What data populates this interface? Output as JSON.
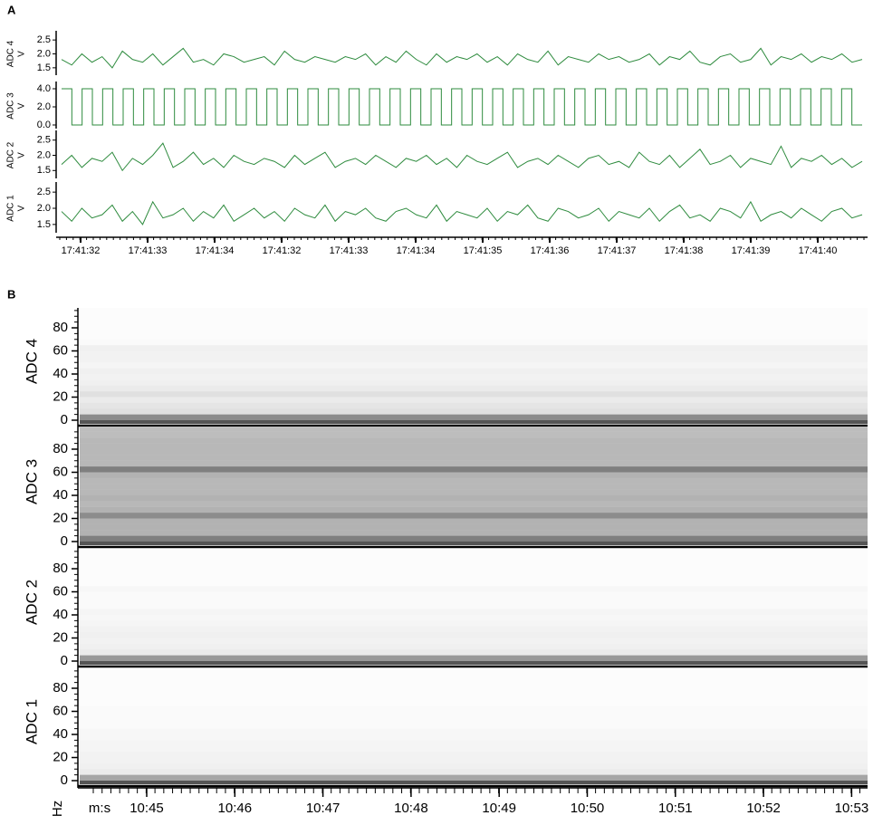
{
  "chart_data": [
    {
      "type": "line",
      "panel_label": "A",
      "unit": "V",
      "color": "#2e8b3e",
      "categories": [
        "17:41:32",
        "17:41:33",
        "17:41:34",
        "17:41:32",
        "17:41:33",
        "17:41:34",
        "17:41:35",
        "17:41:36",
        "17:41:37",
        "17:41:38",
        "17:41:39",
        "17:41:40"
      ],
      "panels": [
        {
          "name": "ADC 4",
          "ylim": [
            1.3,
            2.7
          ],
          "yticks": [
            {
              "value": 1.5,
              "label": "1.5"
            },
            {
              "value": 2,
              "label": "2.0"
            },
            {
              "value": 2.5,
              "label": "2.5"
            }
          ],
          "values": [
            1.8,
            1.6,
            2.0,
            1.7,
            1.9,
            1.5,
            2.1,
            1.8,
            1.7,
            2.0,
            1.6,
            1.9,
            2.2,
            1.7,
            1.8,
            1.6,
            2.0,
            1.9,
            1.7,
            1.8,
            1.9,
            1.6,
            2.1,
            1.8,
            1.7,
            1.9,
            1.8,
            1.7,
            1.9,
            1.8,
            2.0,
            1.6,
            1.9,
            1.7,
            2.1,
            1.8,
            1.6,
            2.0,
            1.7,
            1.9,
            1.8,
            2.0,
            1.7,
            1.9,
            1.6,
            2.0,
            1.8,
            1.7,
            2.1,
            1.6,
            1.9,
            1.8,
            1.7,
            2.0,
            1.8,
            1.9,
            1.7,
            1.8,
            2.0,
            1.6,
            1.9,
            1.8,
            2.1,
            1.7,
            1.6,
            1.9,
            2.0,
            1.7,
            1.8,
            2.2,
            1.6,
            1.9,
            1.8,
            2.0,
            1.7,
            1.9,
            1.8,
            2.0,
            1.7,
            1.8
          ]
        },
        {
          "name": "ADC 3",
          "step": true,
          "ylim": [
            -0.2,
            4.4
          ],
          "yticks": [
            {
              "value": 0,
              "label": "0.0"
            },
            {
              "value": 2,
              "label": "2.0"
            },
            {
              "value": 4,
              "label": "4.0"
            }
          ],
          "values": [
            4,
            0,
            4,
            0,
            4,
            0,
            4,
            0,
            4,
            0,
            4,
            0,
            4,
            0,
            4,
            0,
            4,
            0,
            4,
            0,
            4,
            0,
            4,
            0,
            4,
            0,
            4,
            0,
            4,
            0,
            4,
            0,
            4,
            0,
            4,
            0,
            4,
            0,
            4,
            0,
            4,
            0,
            4,
            0,
            4,
            0,
            4,
            0,
            4,
            0,
            4,
            0,
            4,
            0,
            4,
            0,
            4,
            0,
            4,
            0,
            4,
            0,
            4,
            0,
            4,
            0,
            4,
            0,
            4,
            0,
            4,
            0,
            4,
            0,
            4,
            0,
            4,
            0
          ]
        },
        {
          "name": "ADC 2",
          "ylim": [
            1.3,
            2.7
          ],
          "yticks": [
            {
              "value": 1.5,
              "label": "1.5"
            },
            {
              "value": 2,
              "label": "2.0"
            },
            {
              "value": 2.5,
              "label": "2.5"
            }
          ],
          "values": [
            1.7,
            2.0,
            1.6,
            1.9,
            1.8,
            2.1,
            1.5,
            1.9,
            1.7,
            2.0,
            2.4,
            1.6,
            1.8,
            2.1,
            1.7,
            1.9,
            1.6,
            2.0,
            1.8,
            1.7,
            1.9,
            1.8,
            1.6,
            2.0,
            1.7,
            1.9,
            2.1,
            1.6,
            1.8,
            1.9,
            1.7,
            2.0,
            1.8,
            1.6,
            1.9,
            1.8,
            2.0,
            1.7,
            1.9,
            1.6,
            2.0,
            1.8,
            1.7,
            1.9,
            2.1,
            1.6,
            1.8,
            1.9,
            1.7,
            2.0,
            1.8,
            1.6,
            1.9,
            2.0,
            1.7,
            1.8,
            1.6,
            2.1,
            1.8,
            1.7,
            2.0,
            1.6,
            1.9,
            2.2,
            1.7,
            1.8,
            2.0,
            1.6,
            1.9,
            1.8,
            1.7,
            2.3,
            1.6,
            1.9,
            1.8,
            2.0,
            1.7,
            1.9,
            1.6,
            1.8
          ]
        },
        {
          "name": "ADC 1",
          "ylim": [
            1.3,
            2.7
          ],
          "yticks": [
            {
              "value": 1.5,
              "label": "1.5"
            },
            {
              "value": 2,
              "label": "2.0"
            },
            {
              "value": 2.5,
              "label": "2.5"
            }
          ],
          "values": [
            1.9,
            1.6,
            2.0,
            1.7,
            1.8,
            2.1,
            1.6,
            1.9,
            1.5,
            2.2,
            1.7,
            1.8,
            2.0,
            1.6,
            1.9,
            1.7,
            2.1,
            1.6,
            1.8,
            2.0,
            1.7,
            1.9,
            1.6,
            2.0,
            1.8,
            1.7,
            2.1,
            1.6,
            1.9,
            1.8,
            2.0,
            1.7,
            1.6,
            1.9,
            2.0,
            1.8,
            1.7,
            2.1,
            1.6,
            1.9,
            1.8,
            1.7,
            2.0,
            1.6,
            1.9,
            1.8,
            2.1,
            1.7,
            1.6,
            2.0,
            1.9,
            1.7,
            1.8,
            2.0,
            1.6,
            1.9,
            1.8,
            1.7,
            2.0,
            1.6,
            1.9,
            2.1,
            1.7,
            1.8,
            1.6,
            2.0,
            1.9,
            1.7,
            2.2,
            1.6,
            1.8,
            1.9,
            1.7,
            2.0,
            1.8,
            1.6,
            1.9,
            2.0,
            1.7,
            1.8
          ]
        }
      ]
    },
    {
      "type": "spectrogram",
      "panel_label": "B",
      "y_label": "Hz",
      "x_label": "m:s",
      "categories": [
        "10:45",
        "10:46",
        "10:47",
        "10:48",
        "10:49",
        "10:50",
        "10:51",
        "10:52",
        "10:53"
      ],
      "freq_bins": [
        0,
        5,
        10,
        15,
        20,
        25,
        30,
        35,
        40,
        45,
        50,
        55,
        60,
        65,
        70,
        75,
        80,
        85,
        90,
        95,
        100
      ],
      "panels": [
        {
          "name": "ADC 4",
          "ylim": [
            0,
            100
          ],
          "yticks": [
            0,
            20,
            40,
            60,
            80
          ],
          "intensity": [
            0.45,
            0.12,
            0.1,
            0.08,
            0.12,
            0.08,
            0.06,
            0.05,
            0.06,
            0.04,
            0.05,
            0.05,
            0.06,
            0.02,
            0.01,
            0.01,
            0.01,
            0.01,
            0.01,
            0.01
          ]
        },
        {
          "name": "ADC 3",
          "ylim": [
            0,
            100
          ],
          "yticks": [
            0,
            20,
            40,
            60,
            80
          ],
          "intensity": [
            0.5,
            0.3,
            0.3,
            0.3,
            0.45,
            0.3,
            0.28,
            0.3,
            0.28,
            0.28,
            0.28,
            0.3,
            0.5,
            0.28,
            0.28,
            0.28,
            0.28,
            0.28,
            0.26,
            0.26
          ]
        },
        {
          "name": "ADC 2",
          "ylim": [
            0,
            100
          ],
          "yticks": [
            0,
            20,
            40,
            60,
            80
          ],
          "intensity": [
            0.4,
            0.08,
            0.06,
            0.05,
            0.06,
            0.05,
            0.04,
            0.03,
            0.04,
            0.02,
            0.02,
            0.02,
            0.03,
            0.01,
            0.01,
            0.01,
            0.01,
            0.01,
            0.01,
            0.01
          ]
        },
        {
          "name": "ADC 1",
          "ylim": [
            0,
            100
          ],
          "yticks": [
            0,
            20,
            40,
            60,
            80
          ],
          "intensity": [
            0.35,
            0.08,
            0.06,
            0.05,
            0.05,
            0.04,
            0.04,
            0.03,
            0.03,
            0.02,
            0.02,
            0.02,
            0.02,
            0.01,
            0.01,
            0.01,
            0.01,
            0.01,
            0.01,
            0.01
          ]
        }
      ]
    }
  ]
}
